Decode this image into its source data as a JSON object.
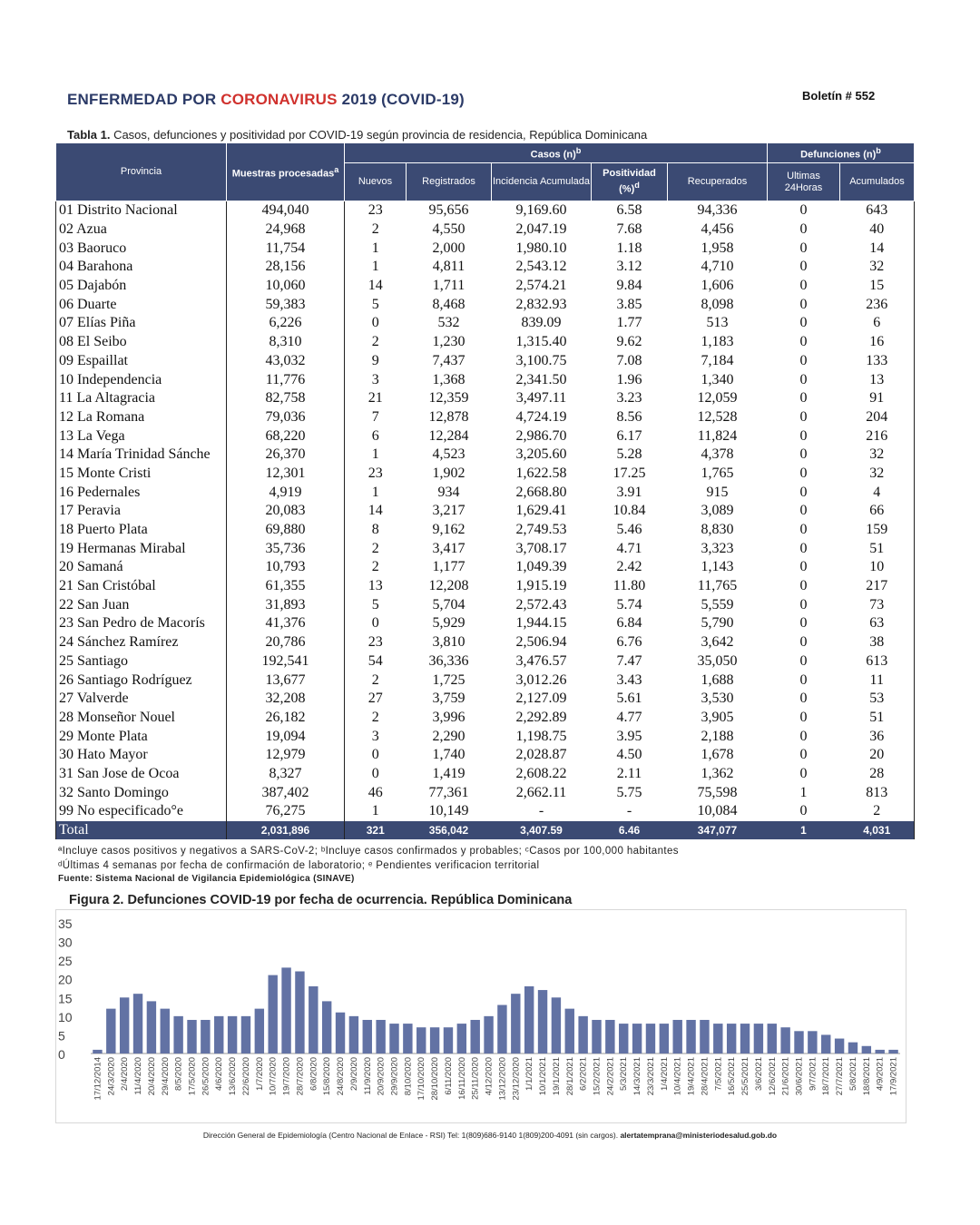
{
  "header": {
    "title_part1": "ENFERMEDAD POR ",
    "title_part2": "CORONAVIRUS",
    "title_part3": " 2019 (COVID-19)",
    "boletin": "Boletín # 552"
  },
  "table": {
    "caption_bold": "Tabla 1.",
    "caption_text": " Casos, defunciones y positividad por COVID-19 según provincia de residencia, República Dominicana",
    "headers": {
      "provincia": "Provincia",
      "muestras": "Muestras procesadas",
      "muestras_sup": "a",
      "casos": "Casos (n)",
      "casos_sup": "b",
      "nuevos": "Nuevos",
      "registrados": "Registrados",
      "incidencia": "Incidencia Acumulada",
      "positividad": "Positividad (%)",
      "positividad_sup": "d",
      "recuperados": "Recuperados",
      "defunciones": "Defunciones (n)",
      "defunciones_sup": "b",
      "ultimas": "Ultimas 24Horas",
      "acumulados": "Acumulados"
    },
    "rows": [
      [
        "01 Distrito Nacional",
        "494,040",
        "23",
        "95,656",
        "9,169.60",
        "6.58",
        "94,336",
        "0",
        "643"
      ],
      [
        "02 Azua",
        "24,968",
        "2",
        "4,550",
        "2,047.19",
        "7.68",
        "4,456",
        "0",
        "40"
      ],
      [
        "03 Baoruco",
        "11,754",
        "1",
        "2,000",
        "1,980.10",
        "1.18",
        "1,958",
        "0",
        "14"
      ],
      [
        "04 Barahona",
        "28,156",
        "1",
        "4,811",
        "2,543.12",
        "3.12",
        "4,710",
        "0",
        "32"
      ],
      [
        "05 Dajabón",
        "10,060",
        "14",
        "1,711",
        "2,574.21",
        "9.84",
        "1,606",
        "0",
        "15"
      ],
      [
        "06 Duarte",
        "59,383",
        "5",
        "8,468",
        "2,832.93",
        "3.85",
        "8,098",
        "0",
        "236"
      ],
      [
        "07 Elías Piña",
        "6,226",
        "0",
        "532",
        "839.09",
        "1.77",
        "513",
        "0",
        "6"
      ],
      [
        "08 El Seibo",
        "8,310",
        "2",
        "1,230",
        "1,315.40",
        "9.62",
        "1,183",
        "0",
        "16"
      ],
      [
        "09 Espaillat",
        "43,032",
        "9",
        "7,437",
        "3,100.75",
        "7.08",
        "7,184",
        "0",
        "133"
      ],
      [
        "10 Independencia",
        "11,776",
        "3",
        "1,368",
        "2,341.50",
        "1.96",
        "1,340",
        "0",
        "13"
      ],
      [
        "11 La Altagracia",
        "82,758",
        "21",
        "12,359",
        "3,497.11",
        "3.23",
        "12,059",
        "0",
        "91"
      ],
      [
        "12 La Romana",
        "79,036",
        "7",
        "12,878",
        "4,724.19",
        "8.56",
        "12,528",
        "0",
        "204"
      ],
      [
        "13 La Vega",
        "68,220",
        "6",
        "12,284",
        "2,986.70",
        "6.17",
        "11,824",
        "0",
        "216"
      ],
      [
        "14 María Trinidad Sánche",
        "26,370",
        "1",
        "4,523",
        "3,205.60",
        "5.28",
        "4,378",
        "0",
        "32"
      ],
      [
        "15 Monte Cristi",
        "12,301",
        "23",
        "1,902",
        "1,622.58",
        "17.25",
        "1,765",
        "0",
        "32"
      ],
      [
        "16 Pedernales",
        "4,919",
        "1",
        "934",
        "2,668.80",
        "3.91",
        "915",
        "0",
        "4"
      ],
      [
        "17 Peravia",
        "20,083",
        "14",
        "3,217",
        "1,629.41",
        "10.84",
        "3,089",
        "0",
        "66"
      ],
      [
        "18 Puerto Plata",
        "69,880",
        "8",
        "9,162",
        "2,749.53",
        "5.46",
        "8,830",
        "0",
        "159"
      ],
      [
        "19 Hermanas Mirabal",
        "35,736",
        "2",
        "3,417",
        "3,708.17",
        "4.71",
        "3,323",
        "0",
        "51"
      ],
      [
        "20 Samaná",
        "10,793",
        "2",
        "1,177",
        "1,049.39",
        "2.42",
        "1,143",
        "0",
        "10"
      ],
      [
        "21 San Cristóbal",
        "61,355",
        "13",
        "12,208",
        "1,915.19",
        "11.80",
        "11,765",
        "0",
        "217"
      ],
      [
        "22 San Juan",
        "31,893",
        "5",
        "5,704",
        "2,572.43",
        "5.74",
        "5,559",
        "0",
        "73"
      ],
      [
        "23 San Pedro de Macorís",
        "41,376",
        "0",
        "5,929",
        "1,944.15",
        "6.84",
        "5,790",
        "0",
        "63"
      ],
      [
        "24 Sánchez Ramírez",
        "20,786",
        "23",
        "3,810",
        "2,506.94",
        "6.76",
        "3,642",
        "0",
        "38"
      ],
      [
        "25 Santiago",
        "192,541",
        "54",
        "36,336",
        "3,476.57",
        "7.47",
        "35,050",
        "0",
        "613"
      ],
      [
        "26 Santiago Rodríguez",
        "13,677",
        "2",
        "1,725",
        "3,012.26",
        "3.43",
        "1,688",
        "0",
        "11"
      ],
      [
        "27 Valverde",
        "32,208",
        "27",
        "3,759",
        "2,127.09",
        "5.61",
        "3,530",
        "0",
        "53"
      ],
      [
        "28 Monseñor Nouel",
        "26,182",
        "2",
        "3,996",
        "2,292.89",
        "4.77",
        "3,905",
        "0",
        "51"
      ],
      [
        "29 Monte Plata",
        "19,094",
        "3",
        "2,290",
        "1,198.75",
        "3.95",
        "2,188",
        "0",
        "36"
      ],
      [
        "30 Hato Mayor",
        "12,979",
        "0",
        "1,740",
        "2,028.87",
        "4.50",
        "1,678",
        "0",
        "20"
      ],
      [
        "31 San Jose de Ocoa",
        "8,327",
        "0",
        "1,419",
        "2,608.22",
        "2.11",
        "1,362",
        "0",
        "28"
      ],
      [
        "32 Santo Domingo",
        "387,402",
        "46",
        "77,361",
        "2,662.11",
        "5.75",
        "75,598",
        "1",
        "813"
      ],
      [
        "99 No especificado°e",
        "76,275",
        "1",
        "10,149",
        "-",
        "-",
        "10,084",
        "0",
        "2"
      ]
    ],
    "total": [
      "Total",
      "2,031,896",
      "321",
      "356,042",
      "3,407.59",
      "6.46",
      "347,077",
      "1",
      "4,031"
    ]
  },
  "footnotes": {
    "line1": "ªIncluye casos positivos y negativos a SARS-CoV-2; ᵇIncluye casos confirmados y probables; ᶜCasos por 100,000 habitantes",
    "line2": "ᵈÚltimas 4 semanas por fecha de confirmación de laboratorio; ᵉ Pendientes verificacion territorial",
    "source": "Fuente: Sistema Nacional de Vigilancia Epidemiológica (SINAVE)"
  },
  "figure": {
    "title": "Figura 2. Defunciones COVID-19 por fecha de ocurrencia. República Dominicana"
  },
  "chart_data": {
    "type": "bar",
    "ylim": [
      0,
      35
    ],
    "yticks": [
      0,
      5,
      10,
      15,
      20,
      25,
      30,
      35
    ],
    "x_tick_labels": [
      "17/12/2014",
      "24/3/2020",
      "2/4/2020",
      "11/4/2020",
      "20/4/2020",
      "29/4/2020",
      "8/5/2020",
      "17/5/2020",
      "26/5/2020",
      "4/6/2020",
      "13/6/2020",
      "22/6/2020",
      "1/7/2020",
      "10/7/2020",
      "19/7/2020",
      "28/7/2020",
      "6/8/2020",
      "15/8/2020",
      "24/8/2020",
      "2/9/2020",
      "11/9/2020",
      "20/9/2020",
      "29/9/2020",
      "8/10/2020",
      "17/10/2020",
      "28/10/2020",
      "6/11/2020",
      "16/11/2020",
      "25/11/2020",
      "4/12/2020",
      "13/12/2020",
      "23/12/2020",
      "1/1/2021",
      "10/1/2021",
      "19/1/2021",
      "28/1/2021",
      "6/2/2021",
      "15/2/2021",
      "24/2/2021",
      "5/3/2021",
      "14/3/2021",
      "23/3/2021",
      "1/4/2021",
      "10/4/2021",
      "19/4/2021",
      "28/4/2021",
      "7/5/2021",
      "16/5/2021",
      "25/5/2021",
      "3/6/2021",
      "12/6/2021",
      "21/6/2021",
      "30/6/2021",
      "9/7/2021",
      "18/7/2021",
      "27/7/2021",
      "5/8/2021",
      "18/8/2021",
      "4/9/2021",
      "17/9/2021"
    ],
    "group_means": [
      1,
      12,
      15,
      16,
      14,
      12,
      10,
      9,
      9,
      10,
      10,
      10,
      12,
      21,
      23,
      22,
      18,
      14,
      11,
      10,
      9,
      9,
      8,
      8,
      7,
      7,
      7,
      8,
      9,
      10,
      13,
      16,
      18,
      17,
      15,
      12,
      10,
      9,
      9,
      8,
      8,
      8,
      8,
      9,
      9,
      9,
      8,
      8,
      8,
      8,
      8,
      7,
      6,
      6,
      5,
      4,
      3,
      2,
      1,
      1
    ],
    "bar_color": "#6272a4"
  },
  "footer": {
    "text": "Dirección General de Epidemiología (Centro Nacional de Enlace - RSI) Tel: 1(809)686-9140   1(809)200-4091 (sin cargos).  ",
    "email": "alertatemprana@ministeriodesalud.gob.do"
  }
}
